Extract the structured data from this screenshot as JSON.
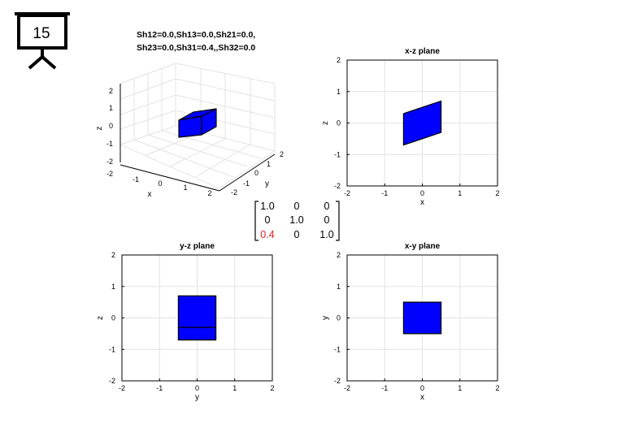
{
  "slide": {
    "number": "15"
  },
  "plot3d": {
    "title_line1": "Sh12=0.0,Sh13=0.0,Sh21=0.0,",
    "title_line2": "Sh23=0.0,Sh31=0.4,,Sh32=0.0",
    "xlabel": "x",
    "ylabel": "y",
    "zlabel": "z",
    "x_ticks": [
      "-2",
      "-1",
      "0",
      "1",
      "2"
    ],
    "y_ticks": [
      "-2",
      "-1",
      "0",
      "1",
      "2"
    ],
    "z_ticks": [
      "-2",
      "-1",
      "0",
      "1",
      "2"
    ]
  },
  "plot_xz": {
    "title": "x-z plane",
    "xlabel": "x",
    "ylabel": "z"
  },
  "plot_yz": {
    "title": "y-z plane",
    "xlabel": "y",
    "ylabel": "z"
  },
  "plot_xy": {
    "title": "x-y plane",
    "xlabel": "x",
    "ylabel": "y"
  },
  "matrix": {
    "rows": [
      [
        "1.0",
        "0",
        "0"
      ],
      [
        "0",
        "1.0",
        "0"
      ],
      [
        "0.4",
        "0",
        "1.0"
      ]
    ],
    "highlight_color": "#e02020"
  },
  "colors": {
    "face": "#0000ff",
    "edge": "#000000",
    "grid": "#e3e3e3"
  },
  "chart_data": [
    {
      "type": "polygon",
      "xlabel": "x",
      "ylabel": "z",
      "title": "x-z plane",
      "xlim": [
        -2,
        2
      ],
      "ylim": [
        -2,
        2
      ],
      "x_ticks": [
        "-2",
        "-1",
        "0",
        "1",
        "2"
      ],
      "y_ticks": [
        "-2",
        "-1",
        "0",
        "1",
        "2"
      ],
      "grid": true,
      "polygons": [
        {
          "x": [
            -0.5,
            0.5,
            0.5,
            -0.5
          ],
          "y": [
            -0.7,
            -0.3,
            0.7,
            0.3
          ]
        }
      ]
    },
    {
      "type": "polygon",
      "xlabel": "y",
      "ylabel": "z",
      "title": "y-z plane",
      "xlim": [
        -2,
        2
      ],
      "ylim": [
        -2,
        2
      ],
      "x_ticks": [
        "-2",
        "-1",
        "0",
        "1",
        "2"
      ],
      "y_ticks": [
        "-2",
        "-1",
        "0",
        "1",
        "2"
      ],
      "grid": true,
      "polygons": [
        {
          "x": [
            -0.5,
            0.5,
            0.5,
            -0.5
          ],
          "y": [
            -0.7,
            -0.7,
            0.7,
            0.7
          ]
        }
      ],
      "lines": [
        {
          "x": [
            -0.5,
            0.5
          ],
          "y": [
            -0.3,
            -0.3
          ]
        }
      ]
    },
    {
      "type": "polygon",
      "xlabel": "x",
      "ylabel": "y",
      "title": "x-y plane",
      "xlim": [
        -2,
        2
      ],
      "ylim": [
        -2,
        2
      ],
      "x_ticks": [
        "-2",
        "-1",
        "0",
        "1",
        "2"
      ],
      "y_ticks": [
        "-2",
        "-1",
        "0",
        "1",
        "2"
      ],
      "grid": true,
      "polygons": [
        {
          "x": [
            -0.5,
            0.5,
            0.5,
            -0.5
          ],
          "y": [
            -0.5,
            -0.5,
            0.5,
            0.5
          ]
        }
      ]
    }
  ]
}
